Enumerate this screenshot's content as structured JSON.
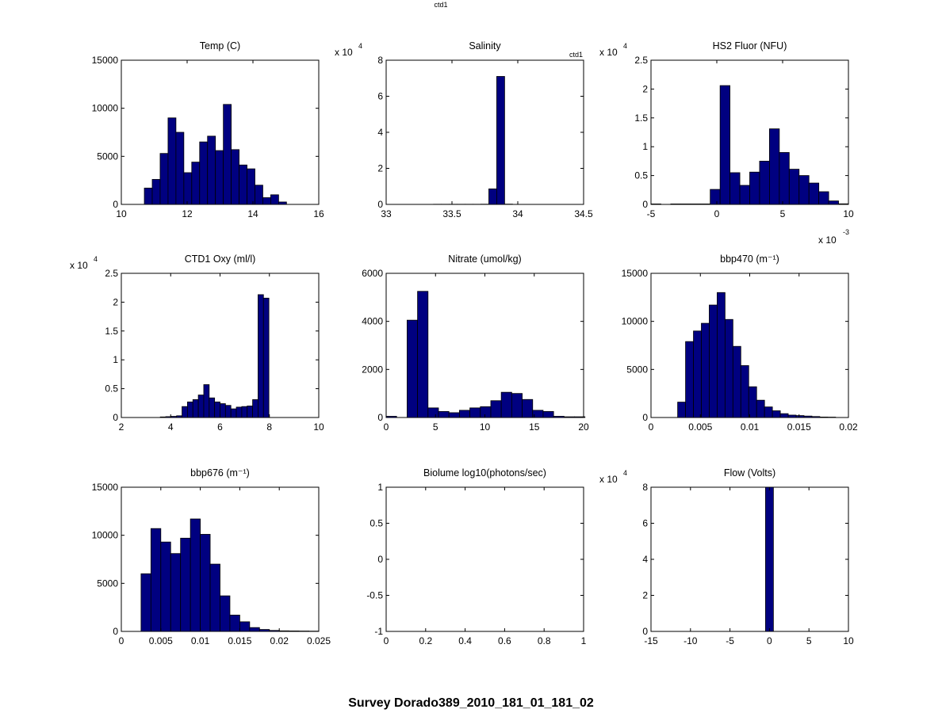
{
  "figure": {
    "top_label": "ctd1",
    "suptitle": "Survey Dorado389_2010_181_01_181_02",
    "bar_color": "#000080"
  },
  "chart_data": [
    {
      "type": "bar",
      "title": "Temp (C)",
      "xlim": [
        10,
        16
      ],
      "xticks": [
        "10",
        "12",
        "14",
        "16"
      ],
      "ylim": [
        0,
        15000
      ],
      "yticks": [
        "0",
        "5000",
        "10000",
        "15000"
      ],
      "bin_width": 0.24,
      "x": [
        10.82,
        11.06,
        11.3,
        11.54,
        11.78,
        12.02,
        12.26,
        12.5,
        12.74,
        12.98,
        13.22,
        13.46,
        13.7,
        13.94,
        14.18,
        14.42,
        14.66,
        14.9
      ],
      "values": [
        1700,
        2600,
        5300,
        9000,
        7500,
        3300,
        4400,
        6500,
        7100,
        5600,
        10400,
        5700,
        4100,
        3700,
        2000,
        700,
        1000,
        250
      ]
    },
    {
      "type": "bar",
      "title": "Salinity",
      "inset_label": "ctd1",
      "y_multiplier": "x 10",
      "y_exponent": "4",
      "xlim": [
        33,
        34.5
      ],
      "xticks": [
        "33",
        "33.5",
        "34",
        "34.5"
      ],
      "ylim": [
        0,
        80000
      ],
      "yticks": [
        "0",
        "2",
        "4",
        "6",
        "8"
      ],
      "bin_width": 0.06,
      "x": [
        33.03,
        33.09,
        33.15,
        33.21,
        33.27,
        33.33,
        33.39,
        33.45,
        33.51,
        33.57,
        33.63,
        33.69,
        33.75,
        33.81,
        33.87,
        33.93,
        33.99,
        34.05,
        34.11,
        34.17,
        34.23,
        34.29,
        34.35,
        34.41,
        34.47
      ],
      "values": [
        0,
        0,
        0,
        0,
        0,
        0,
        80,
        80,
        80,
        80,
        80,
        80,
        120,
        8600,
        71000,
        150,
        40,
        30,
        20,
        20,
        20,
        20,
        20,
        20,
        20
      ]
    },
    {
      "type": "bar",
      "title": "HS2 Fluor (NFU)",
      "y_multiplier": "x 10",
      "y_exponent": "4",
      "x_multiplier": "x 10",
      "x_exponent": "-3",
      "xlim": [
        -5,
        10
      ],
      "xticks": [
        "-5",
        "0",
        "5",
        "10"
      ],
      "ylim": [
        0,
        25000
      ],
      "yticks": [
        "0",
        "0.5",
        "1",
        "1.5",
        "2",
        "2.5"
      ],
      "bin_width": 0.75,
      "x": [
        -4.625,
        -3.875,
        -3.125,
        -2.375,
        -1.625,
        -0.875,
        -0.125,
        0.625,
        1.375,
        2.125,
        2.875,
        3.625,
        4.375,
        5.125,
        5.875,
        6.625,
        7.375,
        8.125,
        8.875,
        9.625
      ],
      "values": [
        80,
        0,
        80,
        80,
        80,
        80,
        2600,
        20600,
        5500,
        3300,
        5600,
        7500,
        13100,
        9000,
        6100,
        5000,
        3700,
        2200,
        600,
        100
      ]
    },
    {
      "type": "bar",
      "title": "CTD1 Oxy (ml/l)",
      "y_multiplier": "x 10",
      "y_exponent": "4",
      "xlim": [
        2,
        10
      ],
      "xticks": [
        "2",
        "4",
        "6",
        "8",
        "10"
      ],
      "ylim": [
        0,
        25000
      ],
      "yticks": [
        "0",
        "0.5",
        "1",
        "1.5",
        "2",
        "2.5"
      ],
      "bin_width": 0.22,
      "x": [
        3.69,
        3.91,
        4.13,
        4.35,
        4.57,
        4.79,
        5.01,
        5.23,
        5.45,
        5.67,
        5.89,
        6.11,
        6.33,
        6.55,
        6.77,
        6.99,
        7.21,
        7.43,
        7.65,
        7.87,
        8.09
      ],
      "values": [
        100,
        150,
        200,
        300,
        1900,
        2700,
        3100,
        3900,
        5700,
        3400,
        2700,
        2400,
        2100,
        1500,
        1800,
        1900,
        2000,
        3100,
        21300,
        20700,
        0
      ]
    },
    {
      "type": "bar",
      "title": "Nitrate (umol/kg)",
      "xlim": [
        0,
        20
      ],
      "xticks": [
        "0",
        "5",
        "10",
        "15",
        "20"
      ],
      "ylim": [
        0,
        6000
      ],
      "yticks": [
        "0",
        "2000",
        "4000",
        "6000"
      ],
      "bin_width": 1.06,
      "x": [
        0.53,
        1.59,
        2.65,
        3.71,
        4.77,
        5.83,
        6.89,
        7.95,
        9.01,
        10.07,
        11.13,
        12.19,
        13.25,
        14.31,
        15.37,
        16.43,
        17.49,
        18.55,
        19.61
      ],
      "values": [
        50,
        0,
        4050,
        5250,
        400,
        250,
        200,
        300,
        400,
        450,
        700,
        1050,
        1000,
        750,
        300,
        250,
        50,
        30,
        30
      ]
    },
    {
      "type": "bar",
      "title": "bbp470 (m⁻¹)",
      "xlim": [
        0,
        0.02
      ],
      "xticks": [
        "0",
        "0.005",
        "0.01",
        "0.015",
        "0.02"
      ],
      "ylim": [
        0,
        15000
      ],
      "yticks": [
        "0",
        "5000",
        "10000",
        "15000"
      ],
      "bin_width": 0.0008,
      "x": [
        0.0031,
        0.0039,
        0.0047,
        0.0055,
        0.0063,
        0.0071,
        0.0079,
        0.0087,
        0.0095,
        0.0103,
        0.0111,
        0.0119,
        0.0127,
        0.0135,
        0.0143,
        0.0151,
        0.0159,
        0.0167,
        0.0175,
        0.0183
      ],
      "values": [
        1600,
        7900,
        9000,
        9800,
        11700,
        13000,
        10200,
        7400,
        5400,
        3200,
        1800,
        1100,
        700,
        400,
        250,
        200,
        150,
        100,
        50,
        40
      ]
    },
    {
      "type": "bar",
      "title": "bbp676 (m⁻¹)",
      "xlim": [
        0,
        0.025
      ],
      "xticks": [
        "0",
        "0.005",
        "0.01",
        "0.015",
        "0.02",
        "0.025"
      ],
      "ylim": [
        0,
        15000
      ],
      "yticks": [
        "0",
        "5000",
        "10000",
        "15000"
      ],
      "bin_width": 0.00125,
      "x": [
        0.003125,
        0.004375,
        0.005625,
        0.006875,
        0.008125,
        0.009375,
        0.010625,
        0.011875,
        0.013125,
        0.014375,
        0.015625,
        0.016875,
        0.018125,
        0.019375,
        0.020625,
        0.021875,
        0.023125,
        0.024375
      ],
      "values": [
        6000,
        10700,
        9300,
        8100,
        9700,
        11700,
        10100,
        7000,
        3700,
        1700,
        1000,
        400,
        200,
        100,
        60,
        50,
        40,
        30
      ]
    },
    {
      "type": "bar",
      "title": "Biolume log10(photons/sec)",
      "xlim": [
        0,
        1
      ],
      "xticks": [
        "0",
        "0.2",
        "0.4",
        "0.6",
        "0.8",
        "1"
      ],
      "ylim": [
        -1,
        1
      ],
      "yticks": [
        "-1",
        "-0.5",
        "0",
        "0.5",
        "1"
      ],
      "bin_width": 0.1,
      "x": [],
      "values": []
    },
    {
      "type": "bar",
      "title": "Flow (Volts)",
      "y_multiplier": "x 10",
      "y_exponent": "4",
      "xlim": [
        -15,
        10
      ],
      "xticks": [
        "-15",
        "-10",
        "-5",
        "0",
        "5",
        "10"
      ],
      "ylim": [
        0,
        80000
      ],
      "yticks": [
        "0",
        "2",
        "4",
        "6",
        "8"
      ],
      "bin_width": 1,
      "x": [
        0
      ],
      "values": [
        80000
      ]
    }
  ]
}
